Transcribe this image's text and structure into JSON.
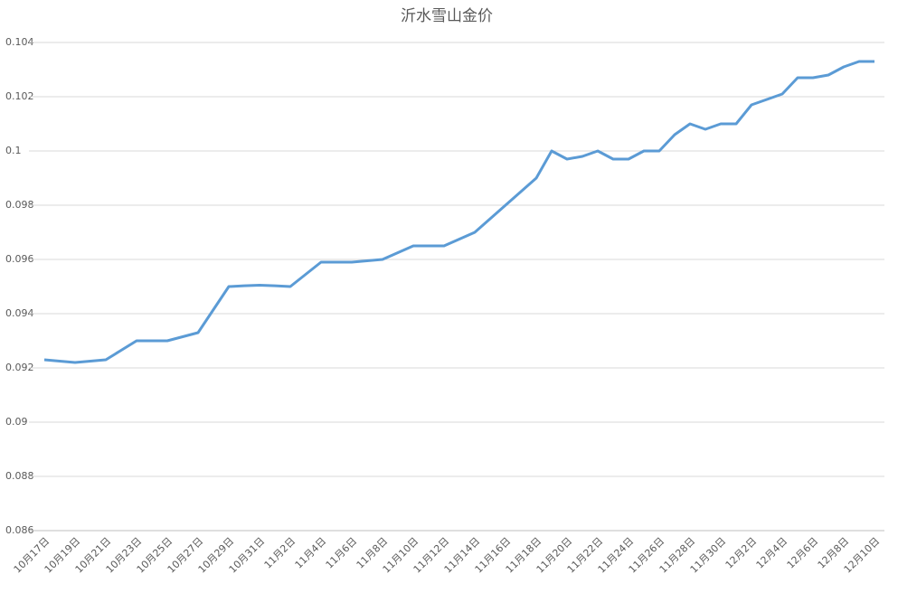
{
  "chart_data": {
    "type": "line",
    "title": "沂水雪山金价",
    "categories": [
      "10月17日",
      null,
      "10月19日",
      null,
      "10月21日",
      null,
      "10月23日",
      null,
      "10月25日",
      null,
      "10月27日",
      null,
      "10月29日",
      null,
      "10月31日",
      null,
      "11月2日",
      null,
      "11月4日",
      null,
      "11月6日",
      null,
      "11月8日",
      null,
      "11月10日",
      null,
      "11月12日",
      null,
      "11月14日",
      null,
      "11月16日",
      null,
      "11月18日",
      null,
      "11月20日",
      null,
      "11月22日",
      null,
      "11月24日",
      null,
      "11月26日",
      null,
      "11月28日",
      null,
      "11月30日",
      null,
      "12月2日",
      null,
      "12月4日",
      null,
      "12月6日",
      null,
      "12月8日",
      null,
      "12月10日"
    ],
    "series": [
      {
        "color": "#5b9bd5",
        "values": [
          0.0923,
          0.09225,
          0.0922,
          0.09225,
          0.0923,
          0.09265,
          0.093,
          0.093,
          0.093,
          0.09315,
          0.0933,
          0.09415,
          0.095,
          0.09503,
          0.09505,
          0.09503,
          0.095,
          0.09545,
          0.0959,
          0.0959,
          0.0959,
          0.09595,
          0.096,
          0.09625,
          0.0965,
          0.0965,
          0.0965,
          0.09675,
          0.097,
          0.0975,
          0.098,
          0.0985,
          0.099,
          0.1,
          0.0997,
          0.0998,
          0.1,
          0.0997,
          0.0997,
          0.1,
          0.1,
          0.1006,
          0.101,
          0.1008,
          0.101,
          0.101,
          0.1017,
          0.1019,
          0.1021,
          0.1027,
          0.1027,
          0.1028,
          0.1031,
          0.1033,
          0.1033
        ]
      }
    ],
    "ylim": [
      0.086,
      0.104
    ],
    "yticks": [
      0.086,
      0.088,
      0.09,
      0.092,
      0.094,
      0.096,
      0.098,
      0.1,
      0.102,
      0.104
    ],
    "grid": true
  }
}
